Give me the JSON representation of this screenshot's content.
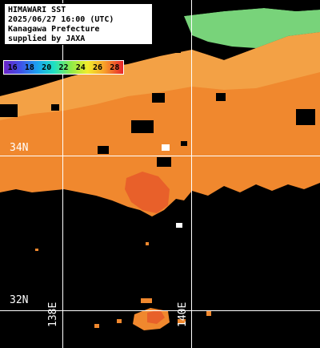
{
  "title": {
    "line1": "HIMAWARI SST",
    "line2": "2025/06/27 16:00 (UTC)",
    "line3": "Kanagawa Prefecture",
    "line4": "supplied by JAXA"
  },
  "legend": {
    "values": [
      "16",
      "18",
      "20",
      "22",
      "24",
      "26",
      "28"
    ],
    "colors": [
      "#6a22c8",
      "#3f52e8",
      "#1aa2f0",
      "#1ee0c2",
      "#8cec4a",
      "#f1ec2c",
      "#f8a12a",
      "#e8242a"
    ]
  },
  "grid": {
    "lat_labels": [
      "34N",
      "32N"
    ],
    "lon_labels": [
      "138E",
      "140E"
    ]
  },
  "colors": {
    "sea_warm": "#f0882e",
    "sea_hot": "#e8602a",
    "land": "#78d37a",
    "no_data": "#000000",
    "grid_line": "#ffffff"
  }
}
